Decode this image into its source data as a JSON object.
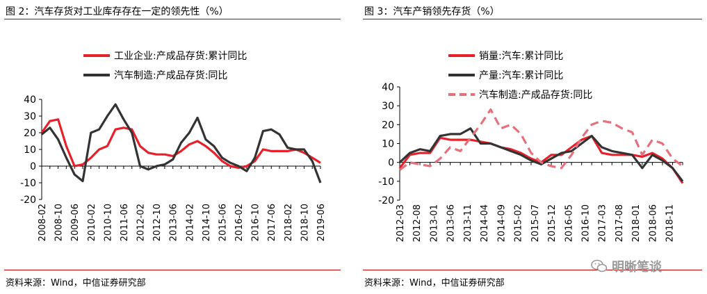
{
  "left": {
    "title": "图 2：汽车存货对工业库存存在一定的领先性（%）",
    "source": "资料来源：Wind，中信证券研究部"
  },
  "right": {
    "title": "图 3：汽车产销领先存货（%）",
    "source": "资料来源：Wind，中信证券研究部"
  },
  "watermark": "明晰笔谈",
  "chart_data": [
    {
      "type": "line",
      "title": "汽车存货对工业库存存在一定的领先性（%）",
      "ylim": [
        -20,
        40
      ],
      "yticks": [
        -20,
        -10,
        0,
        10,
        20,
        30,
        40
      ],
      "x": [
        "2008-02",
        "2008-06",
        "2008-10",
        "2009-02",
        "2009-06",
        "2009-10",
        "2010-02",
        "2010-06",
        "2010-10",
        "2011-02",
        "2011-06",
        "2011-10",
        "2012-02",
        "2012-06",
        "2012-10",
        "2013-02",
        "2013-06",
        "2013-10",
        "2014-02",
        "2014-06",
        "2014-10",
        "2015-02",
        "2015-06",
        "2015-10",
        "2016-02",
        "2016-06",
        "2016-10",
        "2017-02",
        "2017-06",
        "2017-10",
        "2018-02",
        "2018-06",
        "2018-10",
        "2019-02",
        "2019-06"
      ],
      "xtick_labels": [
        "2008-02",
        "2008-10",
        "2009-06",
        "2010-02",
        "2010-10",
        "2011-06",
        "2012-02",
        "2012-10",
        "2013-06",
        "2014-02",
        "2014-10",
        "2015-06",
        "2016-02",
        "2016-10",
        "2017-06",
        "2018-02",
        "2018-10",
        "2019-06"
      ],
      "series": [
        {
          "name": "工业企业:产成品存货:累计同比",
          "color": "#e8202a",
          "values": [
            20,
            27,
            28,
            12,
            0,
            1,
            5,
            10,
            12,
            22,
            23,
            22,
            12,
            8,
            7,
            7,
            6,
            9,
            13,
            15,
            12,
            8,
            3,
            0,
            -1,
            0,
            3,
            10,
            9,
            9,
            9,
            10,
            8,
            5,
            2
          ]
        },
        {
          "name": "汽车制造:产成品存货:同比",
          "color": "#333333",
          "values": [
            19,
            23,
            16,
            5,
            -5,
            -9,
            20,
            22,
            30,
            37,
            28,
            20,
            0,
            -2,
            0,
            1,
            4,
            14,
            20,
            29,
            16,
            12,
            5,
            2,
            0,
            -3,
            5,
            21,
            22,
            19,
            11,
            10,
            10,
            3,
            -10
          ]
        }
      ]
    },
    {
      "type": "line",
      "title": "汽车产销领先存货（%）",
      "ylim": [
        -20,
        40
      ],
      "yticks": [
        -20,
        -10,
        0,
        10,
        20,
        30,
        40
      ],
      "x": [
        "2012-03",
        "2012-06",
        "2012-09",
        "2012-12",
        "2013-03",
        "2013-06",
        "2013-09",
        "2013-12",
        "2014-03",
        "2014-06",
        "2014-09",
        "2014-12",
        "2015-03",
        "2015-06",
        "2015-09",
        "2015-12",
        "2016-03",
        "2016-06",
        "2016-09",
        "2016-12",
        "2017-03",
        "2017-06",
        "2017-09",
        "2017-12",
        "2018-03",
        "2018-06",
        "2018-09",
        "2018-12",
        "2019-03"
      ],
      "xtick_labels": [
        "2012-03",
        "2012-08",
        "2013-01",
        "2013-06",
        "2013-11",
        "2014-04",
        "2014-09",
        "2015-02",
        "2015-07",
        "2015-12",
        "2016-05",
        "2016-10",
        "2017-03",
        "2017-08",
        "2018-01",
        "2018-06",
        "2018-11"
      ],
      "series": [
        {
          "name": "销量:汽车:累计同比",
          "color": "#e8202a",
          "values": [
            -3,
            4,
            5,
            5,
            13,
            12,
            12,
            12,
            11,
            10,
            8,
            7,
            5,
            2,
            0,
            4,
            4,
            8,
            12,
            14,
            5,
            4,
            4,
            4,
            3,
            5,
            2,
            -3,
            -11
          ]
        },
        {
          "name": "产量:汽车:累计同比",
          "color": "#333333",
          "values": [
            0,
            5,
            7,
            6,
            14,
            15,
            15,
            18,
            10,
            10,
            8,
            6,
            4,
            1,
            -1,
            2,
            5,
            6,
            10,
            14,
            8,
            6,
            5,
            4,
            -3,
            4,
            1,
            -3,
            -10
          ]
        },
        {
          "name": "汽车制造:产成品存货:同比",
          "color": "#e6707c",
          "dashed": true,
          "values": [
            -4,
            0,
            -1,
            -2,
            2,
            8,
            6,
            13,
            20,
            28,
            18,
            20,
            15,
            5,
            0,
            -2,
            -3,
            4,
            13,
            20,
            22,
            21,
            18,
            16,
            4,
            12,
            10,
            2,
            -2
          ]
        }
      ]
    }
  ]
}
